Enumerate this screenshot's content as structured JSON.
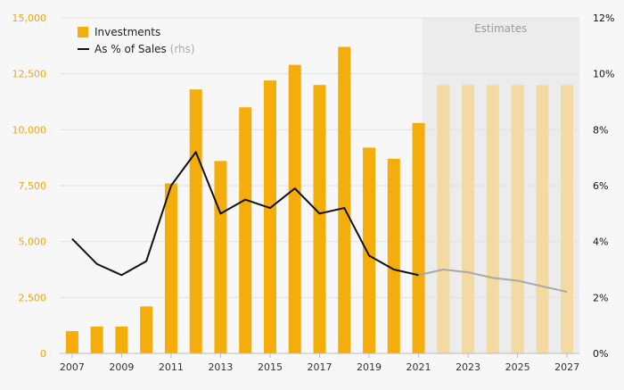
{
  "chart_data": {
    "type": "bar",
    "colors": {
      "bar": "#f5ad0b",
      "bar_estimate": "#f3d9a2",
      "line": "#111111",
      "line_estimate": "#a9a9a9",
      "left_axis_text": "#f0a70f",
      "right_axis_text": "#111111",
      "estimates_band": "#ececec",
      "estimates_text": "#9a9a9a",
      "grid": "#e0e0e0"
    },
    "categories": [
      "2007",
      "2008",
      "2009",
      "2010",
      "2011",
      "2012",
      "2013",
      "2014",
      "2015",
      "2016",
      "2017",
      "2018",
      "2019",
      "2020",
      "2021",
      "2022",
      "2023",
      "2024",
      "2025",
      "2026",
      "2027"
    ],
    "x_tick_labels": [
      "2007",
      "2009",
      "2011",
      "2013",
      "2015",
      "2017",
      "2019",
      "2021",
      "2023",
      "2025",
      "2027"
    ],
    "estimates_start": "2022",
    "estimates_label": "Estimates",
    "y_left": {
      "ylim": [
        0,
        15000
      ],
      "ticks": [
        0,
        2500,
        5000,
        7500,
        10000,
        12500,
        15000
      ],
      "tick_labels": [
        "0",
        "2,500",
        "5,000",
        "7,500",
        "10,000",
        "12,500",
        "15,000"
      ]
    },
    "y_right": {
      "ylim": [
        0,
        12
      ],
      "ticks": [
        0,
        2,
        4,
        6,
        8,
        10,
        12
      ],
      "tick_labels": [
        "0%",
        "2%",
        "4%",
        "6%",
        "8%",
        "10%",
        "12%"
      ]
    },
    "grid": true,
    "legend": {
      "placement": "top-left",
      "entries": [
        {
          "label": "Investments",
          "suffix": ""
        },
        {
          "label": "As % of Sales",
          "suffix": "(rhs)"
        }
      ]
    },
    "series": [
      {
        "name": "Investments",
        "type": "bar",
        "axis": "left",
        "values": [
          1000,
          1200,
          1200,
          2100,
          7600,
          11800,
          8600,
          11000,
          12200,
          12900,
          12000,
          13700,
          9200,
          8700,
          10300,
          12000,
          12000,
          12000,
          12000,
          12000,
          12000
        ]
      },
      {
        "name": "As % of Sales",
        "type": "line",
        "axis": "right",
        "values": [
          4.1,
          3.2,
          2.8,
          3.3,
          6.0,
          7.2,
          5.0,
          5.5,
          5.2,
          5.9,
          5.0,
          5.2,
          3.5,
          3.0,
          2.8,
          3.0,
          2.9,
          2.7,
          2.6,
          2.4,
          2.2
        ]
      }
    ]
  }
}
